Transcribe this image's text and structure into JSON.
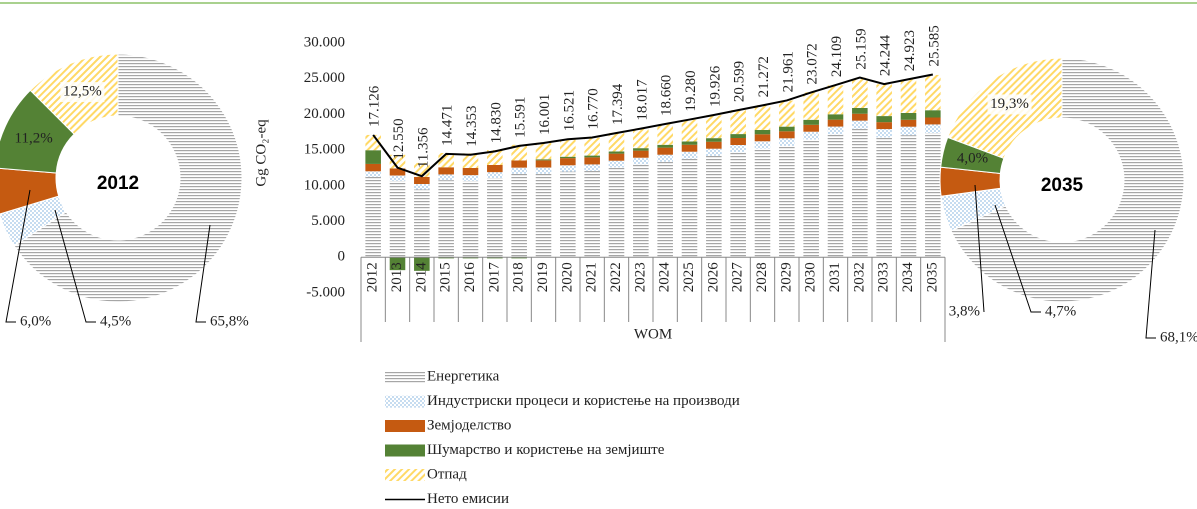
{
  "chart_data": [
    {
      "type": "pie",
      "label": "2012",
      "values": [
        65.8,
        4.5,
        6.0,
        11.2,
        12.5
      ],
      "value_labels": [
        "65,8%",
        "4,5%",
        "6,0%",
        "11,2%",
        "12,5%"
      ]
    },
    {
      "type": "bar",
      "y_label": "Gg CO₂-eq",
      "x_label": "WOM",
      "categories": [
        "2012",
        "2013",
        "2014",
        "2015",
        "2016",
        "2017",
        "2018",
        "2019",
        "2020",
        "2021",
        "2022",
        "2023",
        "2024",
        "2025",
        "2026",
        "2027",
        "2028",
        "2029",
        "2030",
        "2031",
        "2032",
        "2033",
        "2034",
        "2035"
      ],
      "ylim": [
        -5000,
        30000
      ],
      "yticks": [
        {
          "value": 30000,
          "label": "30.000"
        },
        {
          "value": 25000,
          "label": "25.000"
        },
        {
          "value": 20000,
          "label": "20.000"
        },
        {
          "value": 15000,
          "label": "15.000"
        },
        {
          "value": 10000,
          "label": "10.000"
        },
        {
          "value": 5000,
          "label": "5.000"
        },
        0,
        {
          "value": -5000,
          "label": "-5.000"
        }
      ],
      "series": [
        {
          "name": "Енергетика",
          "color": "#a6a6a6",
          "fill_pattern": "horizontal",
          "values": [
            11270,
            10700,
            9500,
            10800,
            10700,
            11100,
            11700,
            11700,
            12000,
            12100,
            12600,
            13000,
            13400,
            13800,
            14200,
            14700,
            15200,
            15600,
            16500,
            17200,
            18000,
            16800,
            17100,
            17400
          ]
        },
        {
          "name": "Индустриски процеси и користење на производи",
          "color": "#9dc3e6",
          "fill_pattern": "dots",
          "values": [
            770,
            750,
            760,
            800,
            800,
            820,
            850,
            870,
            880,
            900,
            920,
            940,
            960,
            980,
            1000,
            1020,
            1040,
            1060,
            1080,
            1100,
            1130,
            1150,
            1180,
            1200
          ]
        },
        {
          "name": "Земјоделство",
          "color": "#c55a11",
          "fill_pattern": "solid",
          "values": [
            1030,
            1000,
            1000,
            1000,
            1000,
            1000,
            1000,
            1000,
            1000,
            990,
            990,
            990,
            990,
            980,
            980,
            980,
            980,
            980,
            970,
            970,
            970,
            970,
            970,
            970
          ]
        },
        {
          "name": "Шумарство и користење на земјиште",
          "color": "#548235",
          "fill_pattern": "solid",
          "values": [
            1920,
            -1800,
            -1900,
            -150,
            -150,
            -150,
            -150,
            150,
            200,
            250,
            300,
            350,
            400,
            450,
            500,
            550,
            600,
            650,
            700,
            750,
            800,
            850,
            950,
            1020
          ]
        },
        {
          "name": "Отпад",
          "color": "#ffd966",
          "fill_pattern": "diagonal",
          "values": [
            2140,
            1900,
            1950,
            2000,
            2050,
            2100,
            2200,
            2300,
            2400,
            2500,
            2600,
            2750,
            2900,
            3050,
            3200,
            3350,
            3500,
            3650,
            3850,
            4050,
            4250,
            4450,
            4700,
            4940
          ]
        },
        {
          "name": "Нето емисии",
          "color": "#000000",
          "type": "line",
          "values": [
            17126,
            12550,
            11356,
            14471,
            14353,
            14830,
            15591,
            16001,
            16521,
            16770,
            17394,
            18017,
            18660,
            19280,
            19926,
            20599,
            21272,
            21961,
            23072,
            24109,
            25159,
            24244,
            24923,
            25585
          ],
          "value_labels": [
            "17.126",
            "12.550",
            "11.356",
            "14.471",
            "14.353",
            "14.830",
            "15.591",
            "16.001",
            "16.521",
            "16.770",
            "17.394",
            "18.017",
            "18.660",
            "19.280",
            "19.926",
            "20.599",
            "21.272",
            "21.961",
            "23.072",
            "24.109",
            "25.159",
            "24.244",
            "24.923",
            "25.585"
          ]
        }
      ]
    },
    {
      "type": "pie",
      "label": "2035",
      "values": [
        68.1,
        4.7,
        3.8,
        4.0,
        19.3
      ],
      "value_labels": [
        "68,1%",
        "4,7%",
        "3,8%",
        "4,0%",
        "19,3%"
      ]
    }
  ]
}
